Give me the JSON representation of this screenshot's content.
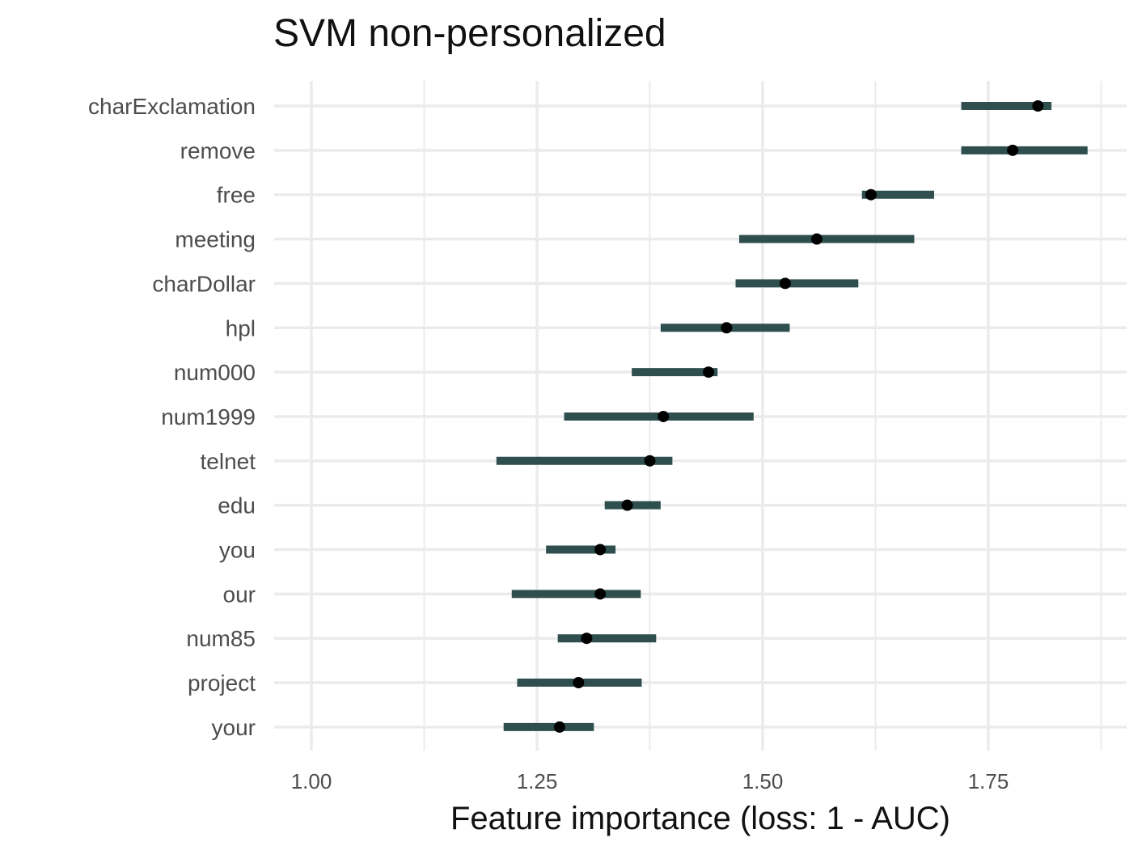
{
  "chart_data": {
    "type": "errorbar",
    "title": "SVM non-personalized",
    "xlabel": "Feature importance (loss: 1 - AUC)",
    "ylabel": "",
    "xlim": [
      0.96,
      1.895
    ],
    "x_ticks": [
      1.0,
      1.25,
      1.5,
      1.75
    ],
    "x_tick_labels": [
      "1.00",
      "1.25",
      "1.50",
      "1.75"
    ],
    "grid": true,
    "legend": "none",
    "colors": {
      "interval": "#2f4f4f",
      "point": "#000000",
      "grid": "#ebebeb",
      "label": "#4d4d4d"
    },
    "features": [
      {
        "name": "charExclamation",
        "low": 1.72,
        "importance": 1.805,
        "high": 1.82
      },
      {
        "name": "remove",
        "low": 1.72,
        "importance": 1.777,
        "high": 1.86
      },
      {
        "name": "free",
        "low": 1.61,
        "importance": 1.62,
        "high": 1.69
      },
      {
        "name": "meeting",
        "low": 1.474,
        "importance": 1.56,
        "high": 1.668
      },
      {
        "name": "charDollar",
        "low": 1.47,
        "importance": 1.525,
        "high": 1.606
      },
      {
        "name": "hpl",
        "low": 1.387,
        "importance": 1.46,
        "high": 1.53
      },
      {
        "name": "num000",
        "low": 1.355,
        "importance": 1.44,
        "high": 1.45
      },
      {
        "name": "num1999",
        "low": 1.28,
        "importance": 1.39,
        "high": 1.49
      },
      {
        "name": "telnet",
        "low": 1.205,
        "importance": 1.375,
        "high": 1.4
      },
      {
        "name": "edu",
        "low": 1.325,
        "importance": 1.35,
        "high": 1.387
      },
      {
        "name": "you",
        "low": 1.26,
        "importance": 1.32,
        "high": 1.337
      },
      {
        "name": "our",
        "low": 1.222,
        "importance": 1.32,
        "high": 1.365
      },
      {
        "name": "num85",
        "low": 1.273,
        "importance": 1.305,
        "high": 1.382
      },
      {
        "name": "project",
        "low": 1.228,
        "importance": 1.296,
        "high": 1.366
      },
      {
        "name": "your",
        "low": 1.213,
        "importance": 1.275,
        "high": 1.313
      }
    ]
  }
}
